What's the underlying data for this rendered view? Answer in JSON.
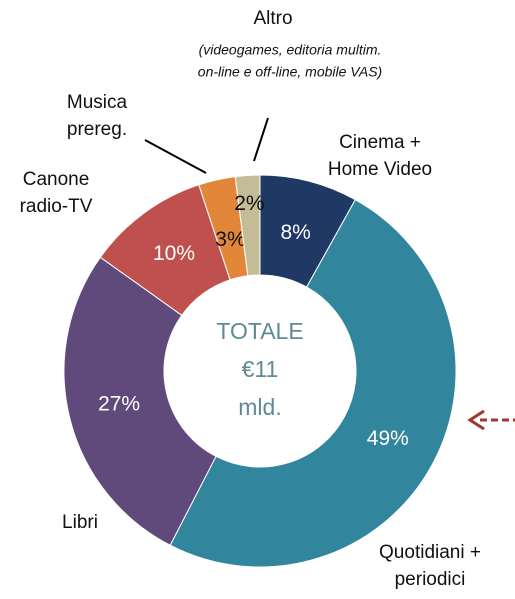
{
  "chart_data": {
    "type": "donut",
    "categories": [
      [
        "Cinema +",
        "Home Video"
      ],
      [
        "Quotidiani +",
        "periodici"
      ],
      [
        "Libri"
      ],
      [
        "Canone",
        "radio-TV"
      ],
      [
        "Musica",
        "prereg."
      ],
      [
        "Altro"
      ]
    ],
    "values": [
      8,
      49,
      27,
      10,
      3,
      2
    ],
    "value_labels": [
      "8%",
      "49%",
      "27%",
      "10%",
      "3%",
      "2%"
    ],
    "colors": [
      "#1f3864",
      "#31859c",
      "#604a7b",
      "#c0504d",
      "#e2873a",
      "#c4bc96"
    ],
    "center_label": [
      "TOTALE",
      "€11",
      "mld."
    ],
    "annotation": [
      "(videogames, editoria multim.",
      "on-line e off-line, mobile VAS)"
    ]
  }
}
